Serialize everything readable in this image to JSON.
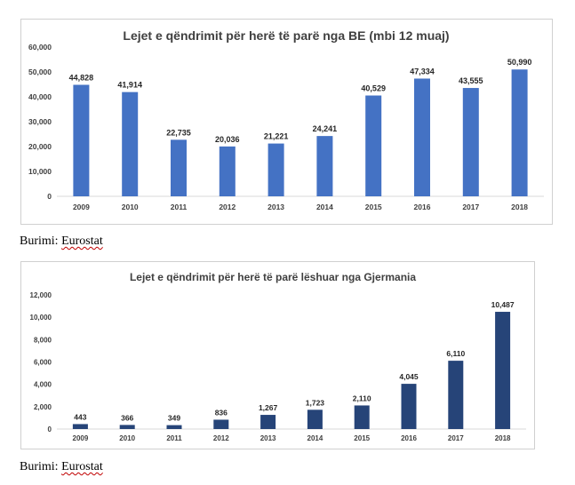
{
  "chart_data": [
    {
      "type": "bar",
      "title": "Lejet e qëndrimit për herë të parë nga BE (mbi 12 muaj)",
      "categories": [
        "2009",
        "2010",
        "2011",
        "2012",
        "2013",
        "2014",
        "2015",
        "2016",
        "2017",
        "2018"
      ],
      "values": [
        44828,
        41914,
        22735,
        20036,
        21221,
        24241,
        40529,
        47334,
        43555,
        50990
      ],
      "value_labels": [
        "44,828",
        "41,914",
        "22,735",
        "20,036",
        "21,221",
        "24,241",
        "40,529",
        "47,334",
        "43,555",
        "50,990"
      ],
      "ylim": [
        0,
        60000
      ],
      "yticks": [
        "0",
        "10,000",
        "20,000",
        "30,000",
        "40,000",
        "50,000",
        "60,000"
      ],
      "bar_color": "#4472c4",
      "grid": false,
      "legend": "none"
    },
    {
      "type": "bar",
      "title": "Lejet e qëndrimit për herë të parë lëshuar nga Gjermania",
      "categories": [
        "2009",
        "2010",
        "2011",
        "2012",
        "2013",
        "2014",
        "2015",
        "2016",
        "2017",
        "2018"
      ],
      "values": [
        443,
        366,
        349,
        836,
        1267,
        1723,
        2110,
        4045,
        6110,
        10487
      ],
      "value_labels": [
        "443",
        "366",
        "349",
        "836",
        "1,267",
        "1,723",
        "2,110",
        "4,045",
        "6,110",
        "10,487"
      ],
      "ylim": [
        0,
        12000
      ],
      "yticks": [
        "0",
        "2,000",
        "4,000",
        "6,000",
        "8,000",
        "10,000",
        "12,000"
      ],
      "bar_color": "#264478",
      "grid": false,
      "legend": "none"
    }
  ],
  "sources": [
    {
      "prefix": "Burimi: ",
      "name": "Eurostat"
    },
    {
      "prefix": "Burimi: ",
      "name": "Eurostat"
    }
  ]
}
